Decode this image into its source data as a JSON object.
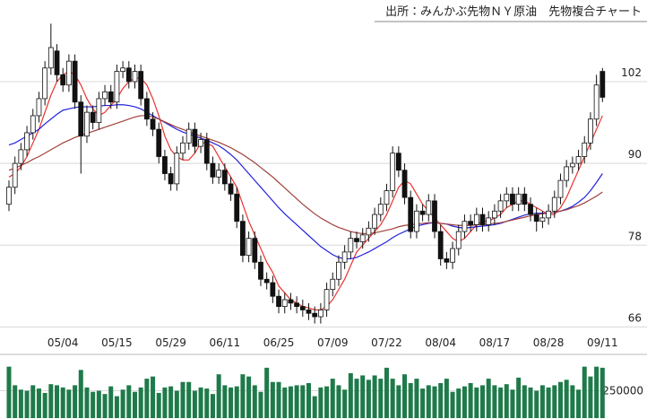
{
  "chart_data": {
    "type": "candlestick",
    "title": "出所：みんかぶ先物ＮＹ原油　先物複合チャート",
    "categories": [
      null,
      null,
      null,
      null,
      null,
      null,
      null,
      null,
      null,
      "05/04",
      null,
      null,
      null,
      null,
      null,
      null,
      null,
      null,
      "05/15",
      null,
      null,
      null,
      null,
      null,
      null,
      null,
      null,
      "05/29",
      null,
      null,
      null,
      null,
      null,
      null,
      null,
      null,
      "06/11",
      null,
      null,
      null,
      null,
      null,
      null,
      null,
      null,
      "06/25",
      null,
      null,
      null,
      null,
      null,
      null,
      null,
      null,
      "07/09",
      null,
      null,
      null,
      null,
      null,
      null,
      null,
      null,
      "07/22",
      null,
      null,
      null,
      null,
      null,
      null,
      null,
      null,
      "08/04",
      null,
      null,
      null,
      null,
      null,
      null,
      null,
      null,
      "08/17",
      null,
      null,
      null,
      null,
      null,
      null,
      null,
      null,
      "08/28",
      null,
      null,
      null,
      null,
      null,
      null,
      null,
      null,
      "09/11"
    ],
    "open": [
      84,
      86.5,
      90,
      92,
      94.5,
      97,
      99.5,
      104,
      106.5,
      103,
      101.5,
      105,
      99,
      94,
      97.5,
      96,
      99.5,
      100.5,
      99,
      103.5,
      104,
      102,
      103.5,
      99.5,
      96.5,
      95,
      91,
      88.5,
      87,
      91.5,
      93,
      95,
      92.5,
      93.5,
      90,
      88,
      89,
      87,
      85.5,
      81.5,
      76.5,
      79,
      75.5,
      73,
      72.5,
      70.5,
      69,
      70,
      69.5,
      69,
      68.5,
      68,
      67.5,
      68.5,
      71.5,
      73,
      75.5,
      77,
      79,
      78.5,
      79.5,
      80.5,
      82.5,
      84,
      86,
      91.5,
      89,
      85,
      80,
      83,
      82.5,
      84.5,
      80,
      76,
      75.5,
      77.5,
      80,
      81.5,
      81,
      82.5,
      81,
      82,
      83,
      84.5,
      85.5,
      84,
      85.5,
      84,
      82.5,
      81.5,
      82,
      83,
      85,
      87.5,
      89.5,
      90,
      91,
      93,
      96.5,
      103.5
    ],
    "high": [
      87.5,
      91,
      93,
      95.5,
      98,
      100.5,
      105,
      110.5,
      107.5,
      104,
      106,
      106,
      100,
      98.5,
      98.5,
      100.5,
      101.5,
      101.5,
      104.5,
      105,
      105,
      104.5,
      104.5,
      100.5,
      97.5,
      96,
      92,
      89.5,
      92.5,
      94,
      96,
      96,
      94.5,
      94.5,
      91,
      90,
      90,
      88,
      86.5,
      82.5,
      80,
      80,
      76.5,
      74,
      73.5,
      71.5,
      71,
      71,
      70.5,
      70,
      69.5,
      69,
      69.5,
      72.5,
      74,
      76.5,
      78,
      80,
      80,
      80.5,
      81.5,
      83.5,
      85,
      87,
      92.5,
      92.5,
      90,
      86,
      84,
      84,
      85.5,
      85.5,
      81,
      77,
      78.5,
      81,
      82.5,
      82.5,
      83.5,
      83.5,
      83,
      84,
      85.5,
      86.5,
      86.5,
      86.5,
      86.5,
      85,
      83.5,
      83,
      84,
      86,
      88.5,
      90.5,
      91,
      92,
      94,
      97.5,
      103,
      104
    ],
    "low": [
      83,
      85.5,
      89,
      91,
      93.5,
      96,
      98.5,
      103,
      102,
      100.5,
      100.5,
      98,
      88.5,
      93,
      95,
      95,
      98.5,
      98,
      98,
      102.5,
      101,
      101,
      98.5,
      95.5,
      94,
      90,
      87.5,
      86,
      86,
      90.5,
      92,
      91.5,
      91.5,
      89,
      87,
      87,
      86,
      84.5,
      80.5,
      75.5,
      75.5,
      74.5,
      72,
      71.5,
      69.5,
      68,
      68,
      68.5,
      68,
      67.5,
      67,
      66.5,
      66.5,
      67.5,
      70.5,
      72,
      74.5,
      76,
      77.5,
      77.5,
      78.5,
      79.5,
      81.5,
      83,
      85,
      88,
      84,
      79,
      79,
      81.5,
      81.5,
      79,
      75,
      74.5,
      74.5,
      76.5,
      79,
      80,
      80,
      80,
      80,
      81,
      82,
      83.5,
      83,
      83,
      83,
      81.5,
      80,
      80.5,
      81,
      82,
      84,
      86.5,
      88.5,
      89,
      90,
      92,
      95.5,
      99
    ],
    "close": [
      86.5,
      90,
      92,
      94.5,
      97,
      99.5,
      104,
      107,
      103,
      101.5,
      105,
      99,
      94,
      97.5,
      96,
      99.5,
      100.5,
      99,
      103.5,
      104,
      102,
      103.5,
      99.5,
      96.5,
      95,
      91,
      88.5,
      87,
      91.5,
      93,
      95,
      92.5,
      93.5,
      90,
      88,
      89,
      87,
      85.5,
      81.5,
      76.5,
      79,
      75.5,
      73,
      72.5,
      70.5,
      69,
      70,
      69.5,
      69,
      68.5,
      68,
      67.5,
      68.5,
      71.5,
      73,
      75.5,
      77,
      79,
      78.5,
      79.5,
      80.5,
      82.5,
      84,
      86,
      91.5,
      89,
      85,
      80,
      83,
      82.5,
      84.5,
      80,
      76,
      75.5,
      77.5,
      80,
      81.5,
      81,
      82.5,
      81,
      82,
      83,
      84.5,
      85.5,
      84,
      85.5,
      84,
      82.5,
      81.5,
      82,
      83,
      85,
      87.5,
      89.5,
      90,
      91,
      93,
      96.5,
      101.5,
      99.7
    ],
    "ylim": [
      65,
      112
    ],
    "yticks": [
      66,
      78,
      90,
      102
    ],
    "up_color": "#ffffff",
    "down_color": "#111111",
    "moving_averages": [
      {
        "color": "#e8322d",
        "values": [
          88,
          88.5,
          89.5,
          91,
          93,
          95,
          97.5,
          100,
          102,
          103,
          103.5,
          103,
          101.5,
          99.5,
          98,
          97,
          97.5,
          98.5,
          99.5,
          101,
          102,
          102.5,
          102.5,
          101.5,
          99.5,
          97,
          94,
          92,
          91,
          90.5,
          90.5,
          91.5,
          93,
          93,
          92.5,
          91,
          89.5,
          88,
          86.5,
          84,
          81.5,
          79.5,
          77.5,
          75.5,
          74,
          72,
          71,
          70,
          69.5,
          69,
          68.8,
          68.5,
          68.5,
          69,
          70,
          71.5,
          73,
          75,
          77,
          78,
          79,
          80,
          81,
          82.5,
          84.5,
          86.5,
          87.5,
          87,
          85.5,
          84,
          83,
          82,
          81,
          80,
          79,
          78.5,
          79,
          80,
          81,
          81.5,
          81.5,
          82,
          82.5,
          83.5,
          84,
          84.5,
          84.5,
          84,
          83.5,
          83,
          82.5,
          82.5,
          83.5,
          85,
          87,
          89,
          91,
          93,
          95,
          97
        ]
      },
      {
        "color": "#2222dd",
        "values": [
          92.7,
          93,
          93.5,
          94,
          94.5,
          95,
          95.8,
          96.5,
          97.2,
          97.8,
          98,
          98.2,
          98.3,
          98.3,
          98.3,
          98.4,
          98.5,
          98.5,
          98.6,
          98.6,
          98.5,
          98.3,
          98,
          97.5,
          97,
          96.5,
          96,
          95.5,
          95,
          94.6,
          94.3,
          94,
          93.7,
          93.4,
          93,
          92.6,
          92,
          91.3,
          90.5,
          89.5,
          88.5,
          87.5,
          86.5,
          85.5,
          84.5,
          83.5,
          82.6,
          81.8,
          81,
          80.2,
          79.4,
          78.6,
          77.8,
          77.2,
          76.6,
          76.2,
          76,
          76,
          76.2,
          76.6,
          77,
          77.5,
          78,
          78.5,
          79.1,
          79.6,
          80,
          80.4,
          80.8,
          81,
          81.2,
          81.3,
          81.2,
          81.1,
          80.8,
          80.6,
          80.5,
          80.6,
          80.7,
          80.8,
          80.9,
          81,
          81.2,
          81.5,
          81.8,
          82.1,
          82.4,
          82.6,
          82.7,
          82.7,
          82.7,
          82.8,
          83,
          83.3,
          83.7,
          84.3,
          85,
          86,
          87.2,
          88.5
        ]
      },
      {
        "color": "#a0413a",
        "values": [
          89,
          89.3,
          89.7,
          90.1,
          90.6,
          91,
          91.5,
          92,
          92.5,
          93,
          93.4,
          93.8,
          94.1,
          94.4,
          94.7,
          95,
          95.3,
          95.6,
          95.9,
          96.2,
          96.5,
          96.8,
          97,
          97,
          96.8,
          96.5,
          96.1,
          95.7,
          95.3,
          95,
          94.6,
          94.3,
          94,
          93.7,
          93.4,
          93.1,
          92.7,
          92.3,
          91.8,
          91.3,
          90.7,
          90.1,
          89.4,
          88.7,
          88,
          87.2,
          86.4,
          85.6,
          84.8,
          84,
          83.3,
          82.6,
          82,
          81.5,
          81,
          80.6,
          80.3,
          80,
          79.8,
          79.7,
          79.7,
          79.8,
          80,
          80.2,
          80.4,
          80.7,
          80.9,
          81,
          81.1,
          81.2,
          81.3,
          81.3,
          81.2,
          81.1,
          81,
          80.9,
          80.9,
          80.9,
          81,
          81,
          81.1,
          81.2,
          81.3,
          81.5,
          81.7,
          81.9,
          82.1,
          82.3,
          82.5,
          82.6,
          82.7,
          82.8,
          83,
          83.2,
          83.5,
          83.8,
          84.2,
          84.7,
          85.2,
          85.8
        ]
      }
    ],
    "grid": true,
    "volume": {
      "color": "#1f7a4a",
      "ylim": [
        0,
        500000
      ],
      "yticks": [
        250000
      ],
      "values": [
        470000,
        300000,
        260000,
        250000,
        300000,
        270000,
        230000,
        310000,
        300000,
        280000,
        260000,
        300000,
        440000,
        280000,
        240000,
        250000,
        220000,
        290000,
        200000,
        260000,
        300000,
        240000,
        280000,
        360000,
        380000,
        230000,
        280000,
        290000,
        250000,
        330000,
        330000,
        250000,
        280000,
        270000,
        220000,
        400000,
        300000,
        280000,
        290000,
        400000,
        380000,
        300000,
        240000,
        460000,
        330000,
        330000,
        280000,
        290000,
        300000,
        300000,
        320000,
        200000,
        280000,
        290000,
        360000,
        300000,
        260000,
        410000,
        360000,
        390000,
        350000,
        390000,
        360000,
        460000,
        360000,
        300000,
        400000,
        320000,
        360000,
        270000,
        300000,
        290000,
        320000,
        360000,
        240000,
        270000,
        290000,
        320000,
        280000,
        300000,
        360000,
        300000,
        280000,
        310000,
        260000,
        370000,
        300000,
        280000,
        250000,
        300000,
        280000,
        300000,
        330000,
        350000,
        300000,
        260000,
        470000,
        380000,
        470000,
        460000
      ]
    }
  }
}
